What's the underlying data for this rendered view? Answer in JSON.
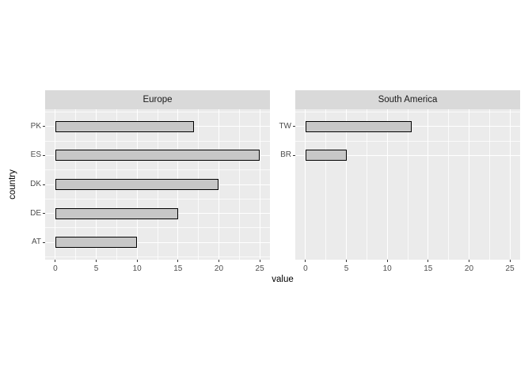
{
  "chart_data": {
    "type": "bar",
    "orientation": "horizontal",
    "xlabel": "value",
    "ylabel": "country",
    "x_ticks": [
      0,
      5,
      10,
      15,
      20,
      25
    ],
    "x_minor_ticks": [
      2.5,
      7.5,
      12.5,
      17.5,
      22.5
    ],
    "xlim": [
      -1.25,
      26.25
    ],
    "grid": true,
    "legend": "none",
    "facets": [
      {
        "label": "Europe",
        "rows": [
          {
            "category": "PK",
            "value": 17
          },
          {
            "category": "ES",
            "value": 25
          },
          {
            "category": "DK",
            "value": 20
          },
          {
            "category": "DE",
            "value": 15
          },
          {
            "category": "AT",
            "value": 10
          }
        ],
        "minor_rows": [
          0,
          1,
          2,
          3,
          4,
          5
        ]
      },
      {
        "label": "South America",
        "rows": [
          {
            "category": "TW",
            "value": 13
          },
          {
            "category": "BR",
            "value": 5
          }
        ],
        "minor_rows": [
          0,
          1
        ]
      }
    ],
    "colors": {
      "panel_bg": "#EBEBEB",
      "strip_bg": "#D9D9D9",
      "gridline": "#FFFFFF",
      "bar_fill": "#C7C7C7",
      "bar_stroke": "#000000",
      "tick_mark": "#333333",
      "tick_label": "#4D4D4D",
      "strip_text": "#1A1A1A",
      "axis_title": "#000000",
      "background": "#FFFFFF"
    }
  }
}
